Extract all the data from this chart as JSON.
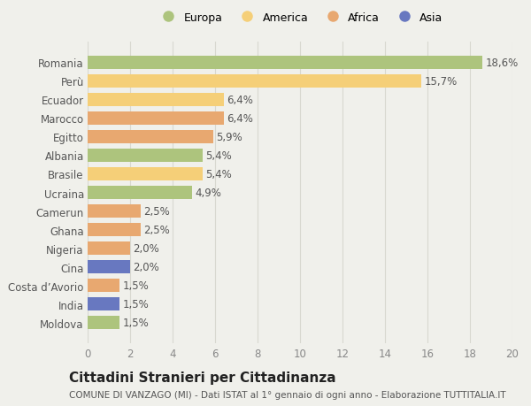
{
  "countries": [
    "Romania",
    "Perù",
    "Ecuador",
    "Marocco",
    "Egitto",
    "Albania",
    "Brasile",
    "Ucraina",
    "Camerun",
    "Ghana",
    "Nigeria",
    "Cina",
    "Costa d’Avorio",
    "India",
    "Moldova"
  ],
  "values": [
    18.6,
    15.7,
    6.4,
    6.4,
    5.9,
    5.4,
    5.4,
    4.9,
    2.5,
    2.5,
    2.0,
    2.0,
    1.5,
    1.5,
    1.5
  ],
  "labels": [
    "18,6%",
    "15,7%",
    "6,4%",
    "6,4%",
    "5,9%",
    "5,4%",
    "5,4%",
    "4,9%",
    "2,5%",
    "2,5%",
    "2,0%",
    "2,0%",
    "1,5%",
    "1,5%",
    "1,5%"
  ],
  "continents": [
    "Europa",
    "America",
    "America",
    "Africa",
    "Africa",
    "Europa",
    "America",
    "Europa",
    "Africa",
    "Africa",
    "Africa",
    "Asia",
    "Africa",
    "Asia",
    "Europa"
  ],
  "continent_colors": {
    "Europa": "#adc47d",
    "America": "#f5cf78",
    "Africa": "#e8a870",
    "Asia": "#6878c0"
  },
  "legend_order": [
    "Europa",
    "America",
    "Africa",
    "Asia"
  ],
  "title": "Cittadini Stranieri per Cittadinanza",
  "subtitle": "COMUNE DI VANZAGO (MI) - Dati ISTAT al 1° gennaio di ogni anno - Elaborazione TUTTITALIA.IT",
  "xlim": [
    0,
    20
  ],
  "xticks": [
    0,
    2,
    4,
    6,
    8,
    10,
    12,
    14,
    16,
    18,
    20
  ],
  "background_color": "#f0f0eb",
  "bar_height": 0.72,
  "label_fontsize": 8.5,
  "tick_fontsize": 8.5,
  "title_fontsize": 11,
  "subtitle_fontsize": 7.5
}
